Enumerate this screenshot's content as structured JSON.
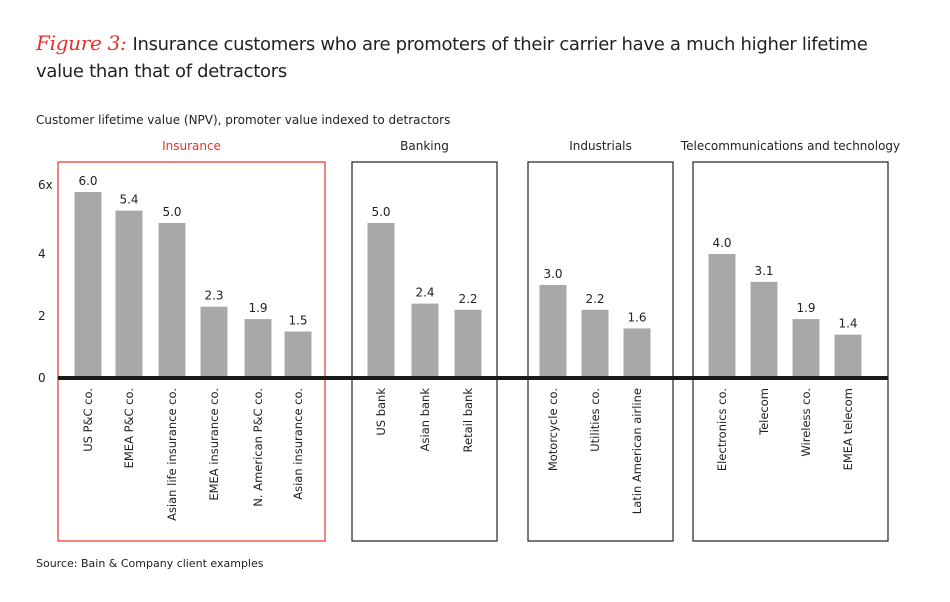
{
  "figure_label": "Figure 3:",
  "title": "Insurance customers who are promoters of their carrier have a much higher lifetime value than that of detractors",
  "subtitle": "Customer lifetime value (NPV), promoter value indexed to detractors",
  "source": "Source: Bain & Company client examples",
  "colors": {
    "bar": "#a7a8aa",
    "highlight": "#e8312a",
    "frame": "#222222",
    "baseline": "#1a1a1a"
  },
  "chart_data": {
    "type": "bar",
    "ylabel": "",
    "ylim": [
      0,
      6
    ],
    "y_ticks": [
      "0",
      "2",
      "4",
      "6x"
    ],
    "y_tick_values": [
      0,
      2,
      4,
      6
    ],
    "grid": false,
    "groups": [
      {
        "name": "Insurance",
        "highlight": true,
        "categories": [
          "US P&C co.",
          "EMEA P&C co.",
          "Asian life insurance co.",
          "EMEA insurance co.",
          "N. American P&C co.",
          "Asian insurance co."
        ],
        "values": [
          6.0,
          5.4,
          5.0,
          2.3,
          1.9,
          1.5
        ],
        "labels": [
          "6.0",
          "5.4",
          "5.0",
          "2.3",
          "1.9",
          "1.5"
        ]
      },
      {
        "name": "Banking",
        "highlight": false,
        "categories": [
          "US bank",
          "Asian bank",
          "Retail bank"
        ],
        "values": [
          5.0,
          2.4,
          2.2
        ],
        "labels": [
          "5.0",
          "2.4",
          "2.2"
        ]
      },
      {
        "name": "Industrials",
        "highlight": false,
        "categories": [
          "Motorcycle co.",
          "Utilities co.",
          "Latin American airline"
        ],
        "values": [
          3.0,
          2.2,
          1.6
        ],
        "labels": [
          "3.0",
          "2.2",
          "1.6"
        ]
      },
      {
        "name": "Telecommunications and technology",
        "highlight": false,
        "categories": [
          "Electronics co.",
          "Telecom",
          "Wireless co.",
          "EMEA telecom"
        ],
        "values": [
          4.0,
          3.1,
          1.9,
          1.4
        ],
        "labels": [
          "4.0",
          "3.1",
          "1.9",
          "1.4"
        ]
      }
    ]
  }
}
